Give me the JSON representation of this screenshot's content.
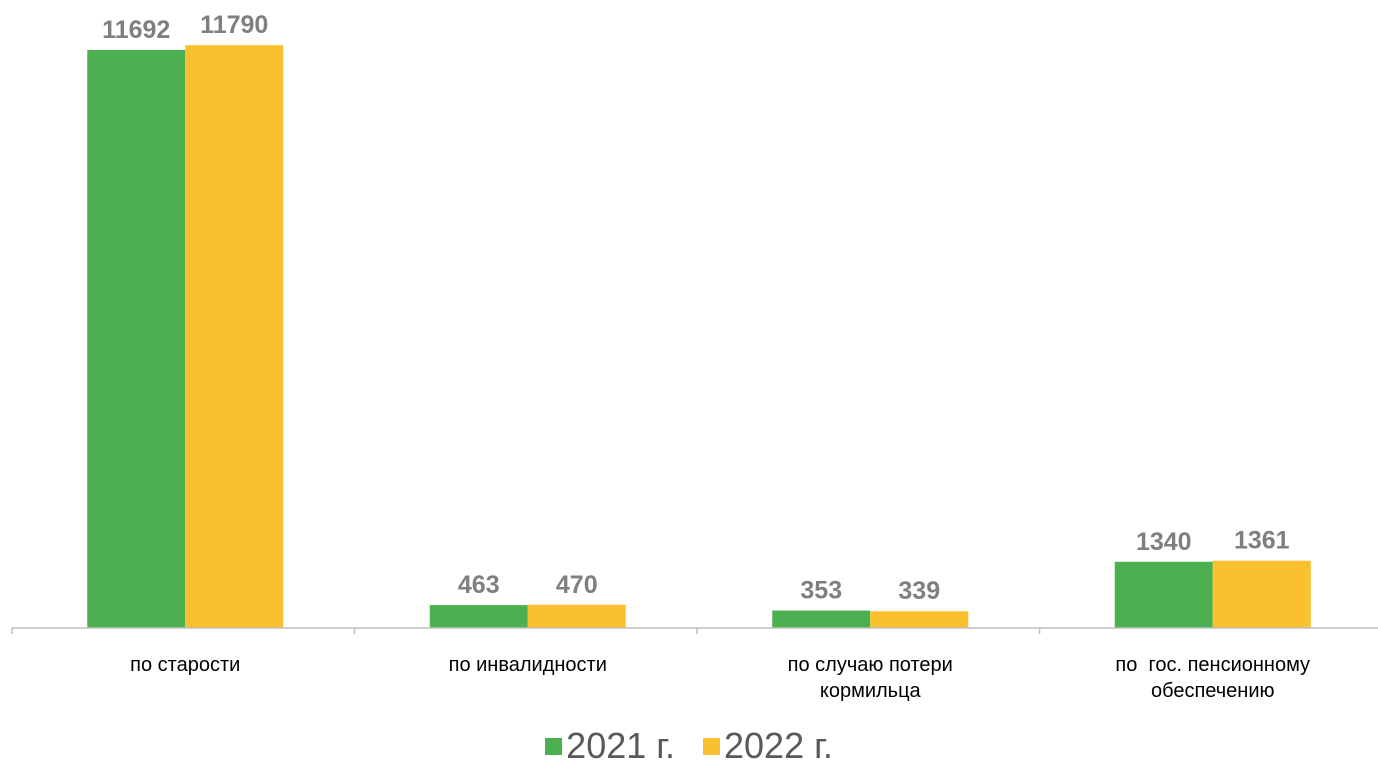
{
  "chart_data": {
    "type": "bar",
    "categories": [
      [
        "по старости"
      ],
      [
        "по инвалидности"
      ],
      [
        "по случаю потери",
        "кормильца"
      ],
      [
        "по  гос. пенсионному",
        "обеспечению"
      ]
    ],
    "series": [
      {
        "name": "2021 г.",
        "color": "#4caf50",
        "values": [
          11692,
          463,
          353,
          1340
        ]
      },
      {
        "name": "2022 г.",
        "color": "#fbc02d",
        "values": [
          11790,
          470,
          339,
          1361
        ]
      }
    ],
    "value_labels": true,
    "legend_position": "bottom",
    "grid": false,
    "ylim": [
      0,
      12800
    ]
  }
}
